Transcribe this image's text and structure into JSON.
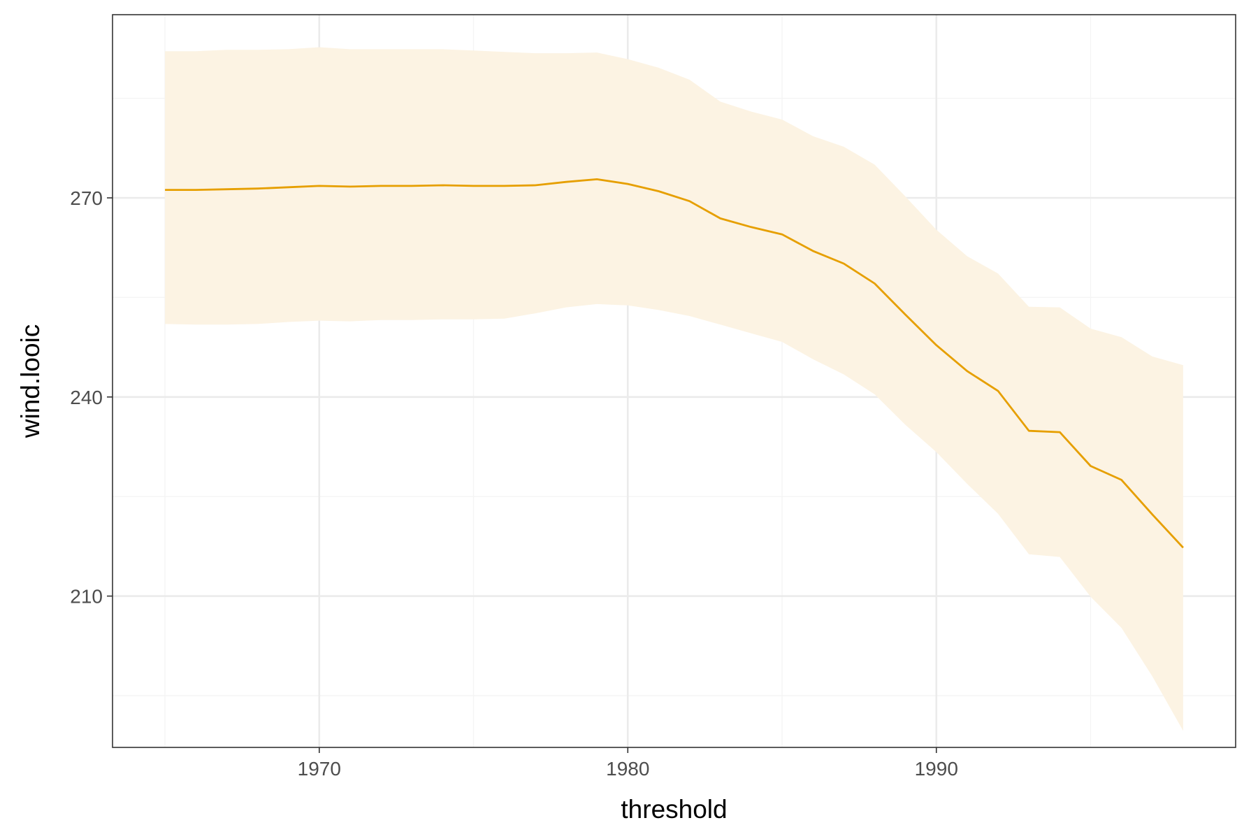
{
  "colors": {
    "line": "#E69F00",
    "ribbon": "#FCF3E3",
    "grid_major": "#EBEBEB",
    "grid_minor": "#F4F4F4",
    "panel_border": "#333333"
  },
  "chart_data": {
    "type": "area",
    "title": "",
    "xlabel": "threshold",
    "ylabel": "wind.looic",
    "xlim": [
      1963.3,
      1999.7
    ],
    "ylim": [
      187.2,
      297.6
    ],
    "x_ticks": [
      1970,
      1980,
      1990
    ],
    "x_minor_ticks": [
      1965,
      1975,
      1985,
      1995
    ],
    "y_ticks": [
      210,
      240,
      270
    ],
    "y_minor_ticks": [
      195,
      225,
      255,
      285
    ],
    "grid": true,
    "legend": "none",
    "series": [
      {
        "x": [
          1965,
          1966,
          1967,
          1968,
          1969,
          1970,
          1971,
          1972,
          1973,
          1974,
          1975,
          1976,
          1977,
          1978,
          1979,
          1980,
          1981,
          1982,
          1983,
          1984,
          1985,
          1986,
          1987,
          1988,
          1989,
          1990,
          1991,
          1992,
          1993,
          1994,
          1995,
          1996,
          1997,
          1998
        ],
        "values": [
          271.2,
          271.2,
          271.3,
          271.4,
          271.6,
          271.8,
          271.7,
          271.8,
          271.8,
          271.9,
          271.8,
          271.8,
          271.9,
          272.4,
          272.8,
          272.1,
          271.0,
          269.5,
          266.9,
          265.6,
          264.5,
          262.0,
          260.1,
          257.1,
          252.4,
          247.8,
          243.9,
          240.9,
          234.9,
          234.7,
          229.6,
          227.5,
          222.3,
          217.3
        ],
        "lower": [
          251.0,
          250.9,
          250.9,
          251.0,
          251.3,
          251.5,
          251.4,
          251.6,
          251.6,
          251.7,
          251.7,
          251.8,
          252.6,
          253.5,
          254.0,
          253.8,
          253.1,
          252.2,
          250.9,
          249.6,
          248.3,
          245.7,
          243.4,
          240.4,
          235.8,
          231.7,
          226.9,
          222.4,
          216.3,
          215.9,
          209.9,
          205.2,
          197.9,
          189.7
        ],
        "upper": [
          292.1,
          292.1,
          292.3,
          292.3,
          292.4,
          292.7,
          292.4,
          292.4,
          292.4,
          292.4,
          292.2,
          292.0,
          291.8,
          291.8,
          291.9,
          290.9,
          289.6,
          287.8,
          284.5,
          283.0,
          281.8,
          279.3,
          277.7,
          275.0,
          270.2,
          265.2,
          261.2,
          258.6,
          253.6,
          253.5,
          250.3,
          249.0,
          246.1,
          244.8
        ]
      }
    ]
  }
}
